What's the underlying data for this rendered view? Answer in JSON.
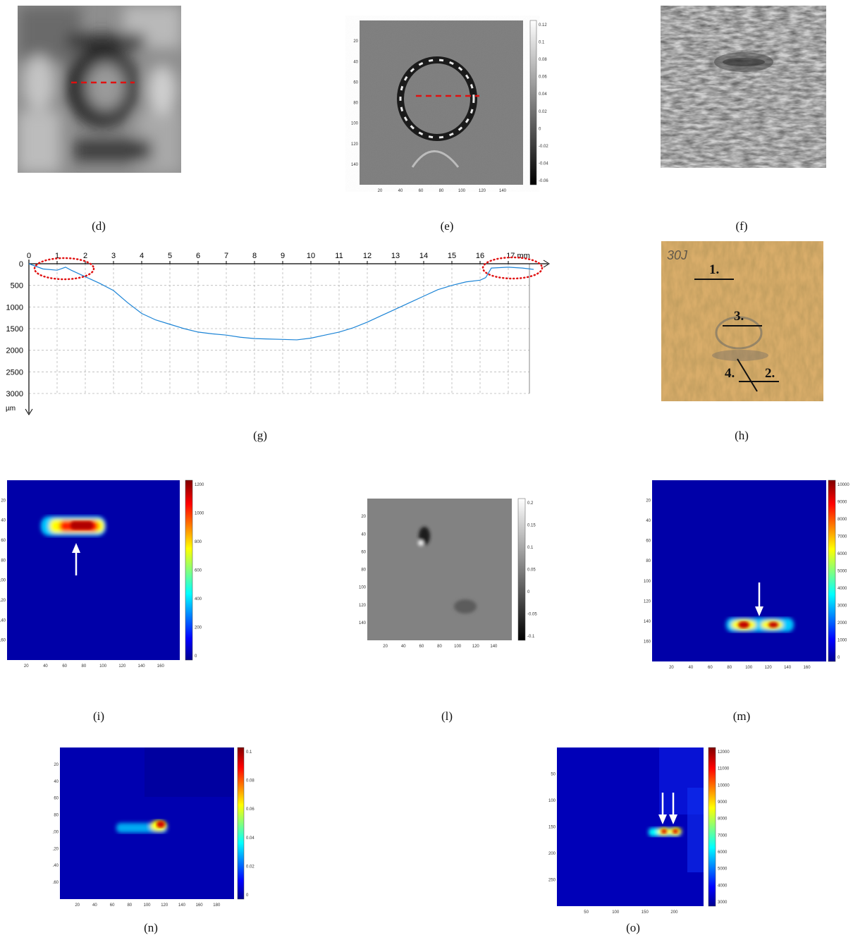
{
  "captions": {
    "d": "(d)",
    "e": "(e)",
    "f": "(f)",
    "g": "(g)",
    "h": "(h)",
    "i": "(i)",
    "l": "(l)",
    "m": "(m)",
    "n": "(n)",
    "o": "(o)"
  },
  "panel_h": {
    "labels": [
      "30J",
      "1.",
      "3.",
      "4.",
      "2."
    ]
  },
  "charts": {
    "e": {
      "x_ticks": [
        "20",
        "40",
        "60",
        "80",
        "100",
        "120",
        "140"
      ],
      "y_ticks": [
        "20",
        "40",
        "60",
        "80",
        "100",
        "120",
        "140"
      ],
      "cbar_ticks": [
        "0.12",
        "0.1",
        "0.08",
        "0.06",
        "0.04",
        "0.02",
        "0",
        "-0.02",
        "-0.04",
        "-0.06"
      ]
    },
    "i": {
      "x_ticks": [
        "20",
        "40",
        "60",
        "80",
        "100",
        "120",
        "140",
        "160"
      ],
      "y_ticks": [
        "20",
        "40",
        "60",
        "80",
        "100",
        "120",
        "140",
        "160"
      ],
      "cbar_ticks": [
        "1200",
        "1000",
        "800",
        "600",
        "400",
        "200",
        "0"
      ]
    },
    "l": {
      "x_ticks": [
        "20",
        "40",
        "60",
        "80",
        "100",
        "120",
        "140"
      ],
      "y_ticks": [
        "20",
        "40",
        "60",
        "80",
        "100",
        "120",
        "140"
      ],
      "cbar_ticks": [
        "0.2",
        "0.15",
        "0.1",
        "0.05",
        "0",
        "-0.05",
        "-0.1"
      ]
    },
    "m": {
      "x_ticks": [
        "20",
        "40",
        "60",
        "80",
        "100",
        "120",
        "140",
        "160"
      ],
      "y_ticks": [
        "20",
        "40",
        "60",
        "80",
        "100",
        "120",
        "140",
        "160"
      ],
      "cbar_ticks": [
        "10000",
        "9000",
        "8000",
        "7000",
        "6000",
        "5000",
        "4000",
        "3000",
        "2000",
        "1000",
        "0"
      ]
    },
    "n": {
      "x_ticks": [
        "20",
        "40",
        "60",
        "80",
        "100",
        "120",
        "140",
        "160",
        "180"
      ],
      "y_ticks": [
        "20",
        "40",
        "60",
        "80",
        "100",
        "120",
        "140",
        "160"
      ],
      "cbar_ticks": [
        "0.1",
        "0.08",
        "0.06",
        "0.04",
        "0.02",
        "0"
      ]
    },
    "o": {
      "x_ticks": [
        "50",
        "100",
        "150",
        "200"
      ],
      "y_ticks": [
        "50",
        "100",
        "150",
        "200",
        "250"
      ],
      "cbar_ticks": [
        "12000",
        "11000",
        "10000",
        "9000",
        "8000",
        "7000",
        "6000",
        "5000",
        "4000",
        "3000"
      ]
    }
  },
  "chart_data": {
    "type": "line",
    "title": "",
    "xlabel": "mm",
    "ylabel": "µm",
    "xlim": [
      0,
      18
    ],
    "ylim": [
      3000,
      0
    ],
    "x_ticks": [
      "0",
      "1",
      "2",
      "3",
      "4",
      "5",
      "6",
      "7",
      "8",
      "9",
      "10",
      "11",
      "12",
      "13",
      "14",
      "15",
      "16",
      "17 mm"
    ],
    "y_ticks": [
      "0",
      "500",
      "1000",
      "1500",
      "2000",
      "2500",
      "3000"
    ],
    "grid": true,
    "series": [
      {
        "x": [
          0,
          0.5,
          1,
          1.3,
          1.5,
          2,
          2.5,
          3,
          3.5,
          4,
          4.5,
          5,
          5.5,
          6,
          6.5,
          7,
          7.5,
          8,
          8.5,
          9,
          9.5,
          10,
          10.5,
          11,
          11.5,
          12,
          12.5,
          13,
          13.5,
          14,
          14.5,
          15,
          15.5,
          16,
          16.2,
          16.4,
          17,
          17.5,
          17.9
        ],
        "y": [
          0,
          120,
          150,
          80,
          150,
          300,
          450,
          620,
          900,
          1150,
          1300,
          1400,
          1500,
          1580,
          1620,
          1650,
          1700,
          1730,
          1740,
          1750,
          1760,
          1720,
          1650,
          1580,
          1480,
          1350,
          1200,
          1050,
          900,
          750,
          600,
          500,
          420,
          380,
          320,
          100,
          80,
          100,
          130
        ]
      }
    ],
    "annotations": [
      "dotted ellipse near x=1.3",
      "dotted ellipse near x=17.2"
    ]
  }
}
